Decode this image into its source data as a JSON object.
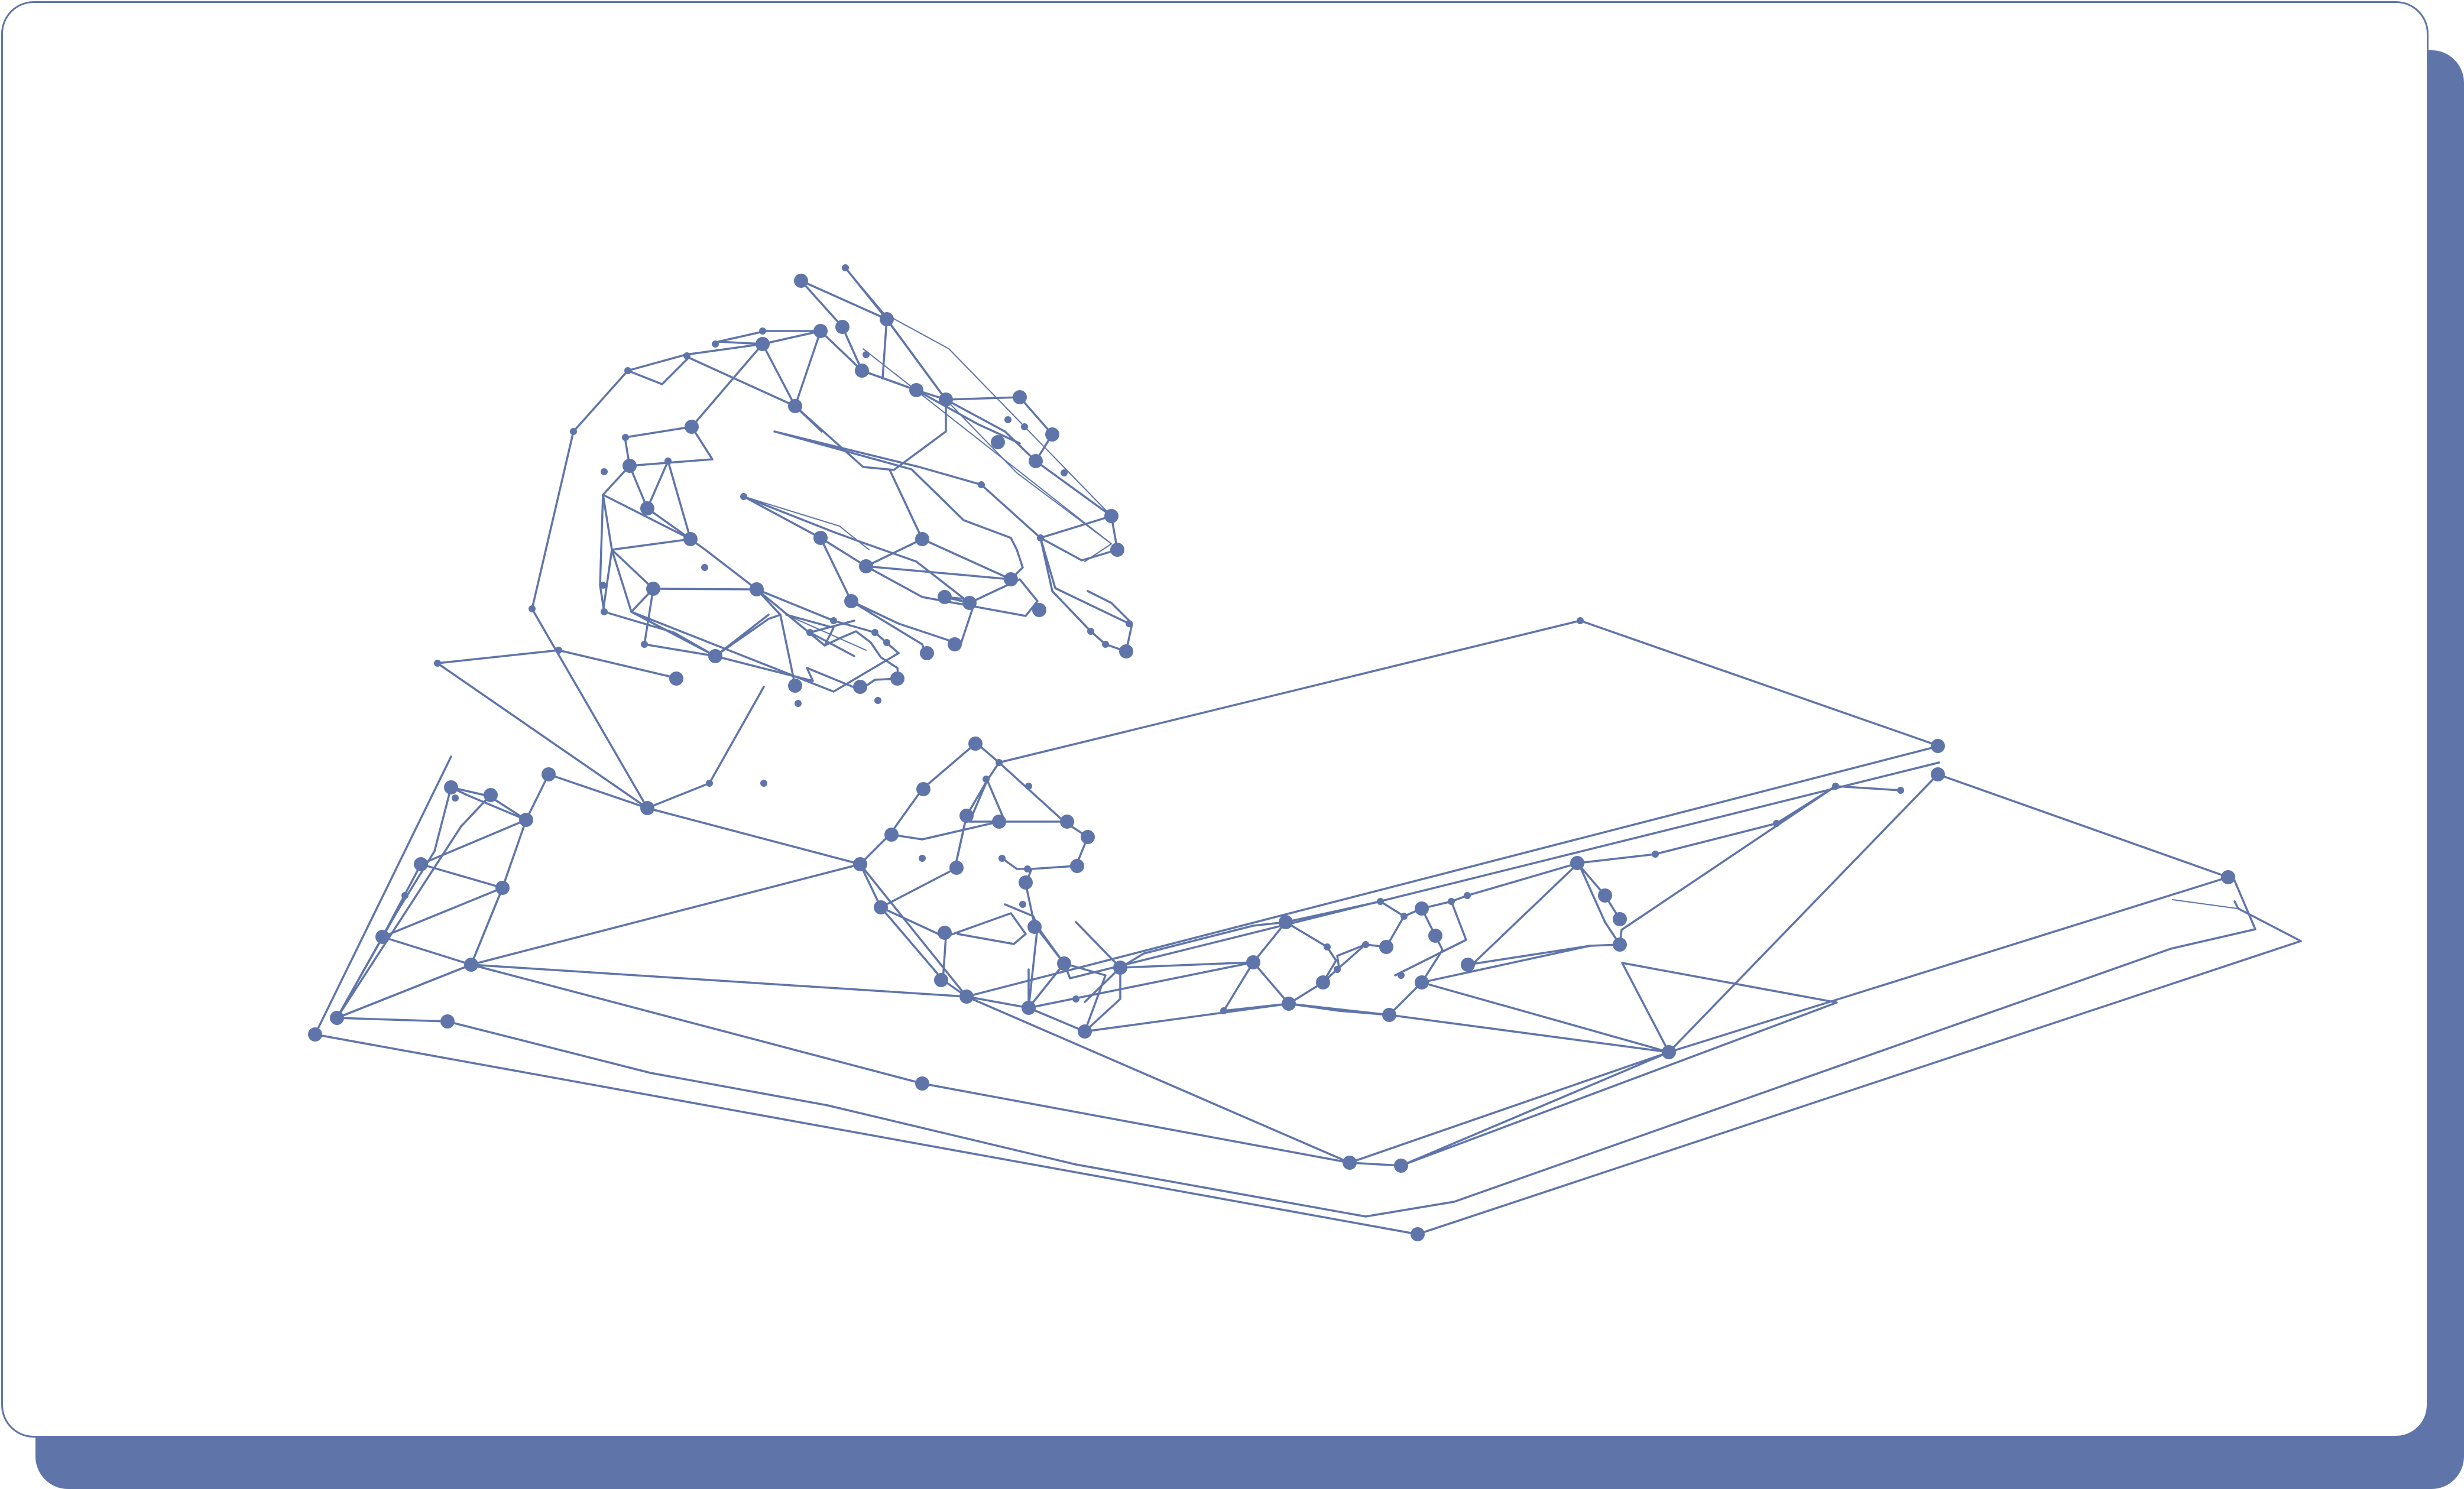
{
  "colors": {
    "accent": "#5f75aa",
    "card": "#ffffff",
    "shadow": "#5f75aa"
  },
  "illustration": {
    "icon": "wireframe-hand-holding-open-book-icon"
  }
}
